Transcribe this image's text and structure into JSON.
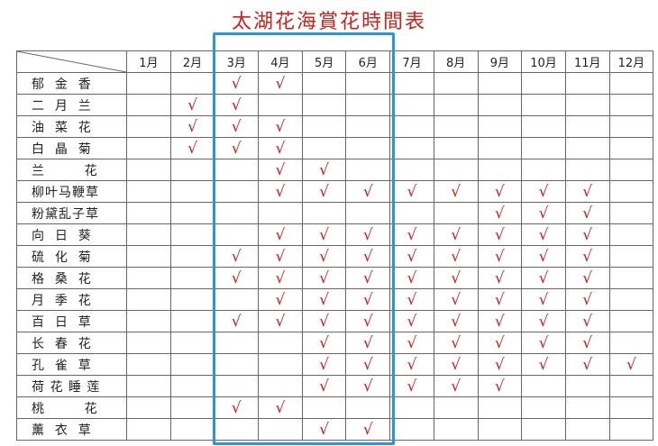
{
  "title": "太湖花海賞花時間表",
  "months": [
    "1月",
    "2月",
    "3月",
    "4月",
    "5月",
    "6月",
    "7月",
    "8月",
    "9月",
    "10月",
    "11月",
    "12月"
  ],
  "check_mark": "√",
  "highlight_color": "#2b95dc",
  "check_color": "#c8231e",
  "highlighted_months": [
    "3月",
    "4月",
    "5月",
    "6月"
  ],
  "rows": [
    {
      "name": "郁  金  香",
      "months": [
        3,
        4
      ]
    },
    {
      "name": "二  月  兰",
      "months": [
        2,
        3
      ]
    },
    {
      "name": "油  菜  花",
      "months": [
        2,
        3,
        4
      ]
    },
    {
      "name": "白  晶  菊",
      "months": [
        2,
        3,
        4
      ]
    },
    {
      "name": "兰        花",
      "months": [
        4,
        5
      ]
    },
    {
      "name": "柳叶马鞭草",
      "months": [
        4,
        5,
        6,
        7,
        8,
        9,
        10,
        11
      ]
    },
    {
      "name": "粉黛乱子草",
      "months": [
        9,
        10,
        11
      ]
    },
    {
      "name": "向  日  葵",
      "months": [
        4,
        5,
        6,
        7,
        8,
        9,
        10,
        11
      ]
    },
    {
      "name": "硫  化  菊",
      "months": [
        3,
        4,
        5,
        6,
        7,
        8,
        9,
        10,
        11
      ]
    },
    {
      "name": "格  桑  花",
      "months": [
        3,
        4,
        5,
        6,
        7,
        8,
        9,
        10,
        11
      ]
    },
    {
      "name": "月  季  花",
      "months": [
        4,
        5,
        6,
        7,
        8,
        9,
        10,
        11
      ]
    },
    {
      "name": "百  日  草",
      "months": [
        3,
        4,
        5,
        6,
        7,
        8,
        9,
        10,
        11
      ]
    },
    {
      "name": "长  春  花",
      "months": [
        5,
        6,
        7,
        8,
        9,
        10,
        11
      ]
    },
    {
      "name": "孔  雀  草",
      "months": [
        5,
        6,
        7,
        8,
        9,
        10,
        11,
        12
      ]
    },
    {
      "name": "荷 花 睡 莲",
      "months": [
        5,
        6,
        7,
        8,
        9
      ]
    },
    {
      "name": "桃        花",
      "months": [
        3,
        4
      ]
    },
    {
      "name": "薰  衣  草",
      "months": [
        5,
        6
      ]
    }
  ]
}
